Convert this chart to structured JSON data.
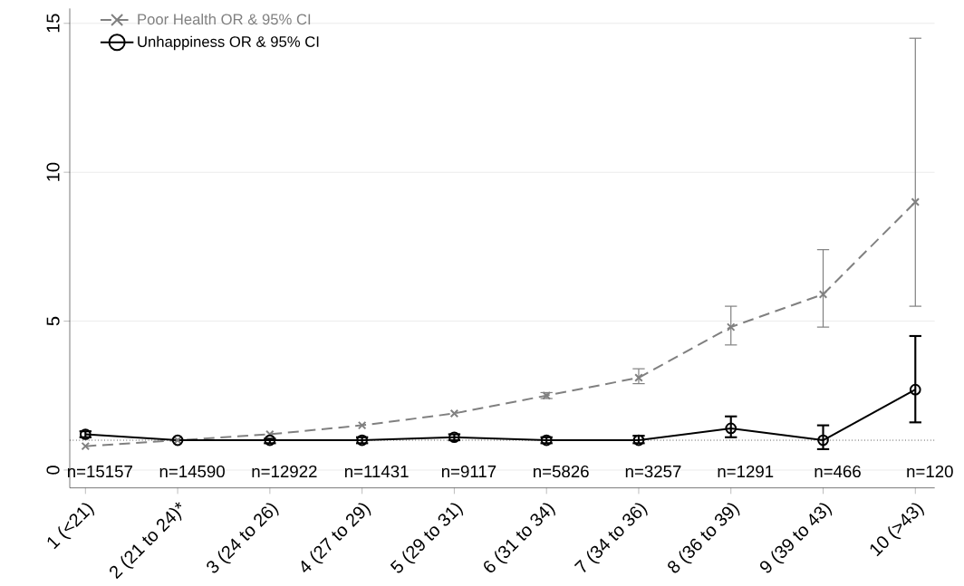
{
  "chart_data": {
    "type": "line",
    "categories": [
      "1 (<21)",
      "2 (21 to 24)*",
      "3 (24 to 26)",
      "4 (27 to 29)",
      "5 (29 to 31)",
      "6 (31 to 34)",
      "7 (34 to 36)",
      "8 (36 to 39)",
      "9 (39 to 43)",
      "10 (>43)"
    ],
    "series": [
      {
        "name": "Poor Health OR & 95% CI",
        "color": "#808080",
        "marker": "cross",
        "line_style": "dashed",
        "values": [
          0.8,
          1.0,
          1.2,
          1.5,
          1.9,
          2.5,
          3.1,
          4.8,
          5.9,
          9.0
        ],
        "errors": [
          null,
          null,
          null,
          null,
          null,
          [
            2.4,
            2.6
          ],
          [
            2.9,
            3.4
          ],
          [
            4.2,
            5.5
          ],
          [
            4.8,
            7.4
          ],
          [
            5.5,
            14.5
          ]
        ]
      },
      {
        "name": "Unhappiness OR & 95% CI",
        "color": "#000000",
        "marker": "circle",
        "line_style": "solid",
        "values": [
          1.2,
          1.0,
          1.0,
          1.0,
          1.1,
          1.0,
          1.0,
          1.4,
          1.0,
          2.7
        ],
        "errors": [
          [
            1.1,
            1.3
          ],
          null,
          [
            0.9,
            1.05
          ],
          [
            0.9,
            1.1
          ],
          [
            1.0,
            1.2
          ],
          [
            0.9,
            1.1
          ],
          [
            0.9,
            1.15
          ],
          [
            1.1,
            1.8
          ],
          [
            0.7,
            1.5
          ],
          [
            1.6,
            4.5
          ]
        ]
      }
    ],
    "ylim": [
      -0.6,
      15.5
    ],
    "yticks": [
      0,
      5,
      10,
      15
    ],
    "grid": "y",
    "legend": "top left",
    "ref_lines": [
      {
        "axis": "y",
        "value": 1,
        "line_style": "dotted",
        "color": "#000000"
      }
    ],
    "annotations": [
      "n=15157",
      "n=14590",
      "n=12922",
      "n=11431",
      "n=9117",
      "n=5826",
      "n=3257",
      "n=1291",
      "n=466",
      "n=120"
    ]
  }
}
